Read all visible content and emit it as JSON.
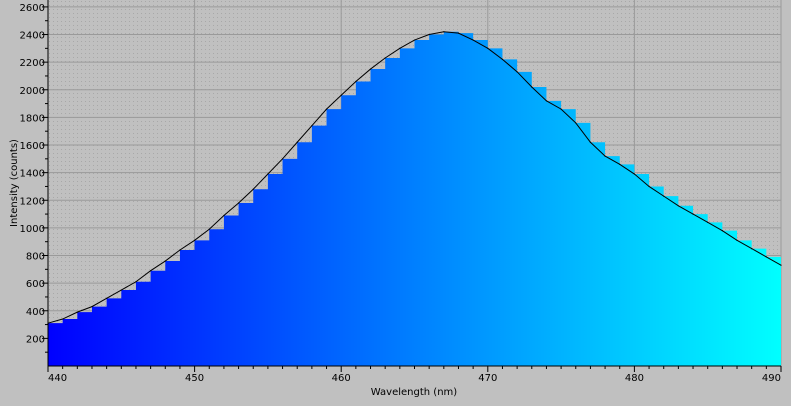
{
  "chart_data": {
    "type": "area",
    "xlabel": "Wavelength (nm)",
    "ylabel": "Intensity (counts)",
    "xlim": [
      440,
      490
    ],
    "ylim": [
      0,
      2650
    ],
    "x_ticks": [
      440,
      450,
      460,
      470,
      480,
      490
    ],
    "y_ticks": [
      200,
      400,
      600,
      800,
      1000,
      1200,
      1400,
      1600,
      1800,
      2000,
      2200,
      2400,
      2600
    ],
    "grid": true,
    "fill_gradient": [
      "#0000ff",
      "#00ffff"
    ],
    "line_color": "#000000",
    "series": [
      {
        "x": [
          440,
          441,
          442,
          443,
          444,
          445,
          446,
          447,
          448,
          449,
          450,
          451,
          452,
          453,
          454,
          455,
          456,
          457,
          458,
          459,
          460,
          461,
          462,
          463,
          464,
          465,
          466,
          467,
          468,
          469,
          470,
          471,
          472,
          473,
          474,
          475,
          476,
          477,
          478,
          479,
          480,
          481,
          482,
          483,
          484,
          485,
          486,
          487,
          488,
          489,
          490
        ],
        "y": [
          310,
          340,
          390,
          430,
          490,
          550,
          610,
          690,
          760,
          840,
          910,
          990,
          1090,
          1180,
          1280,
          1390,
          1500,
          1620,
          1740,
          1860,
          1960,
          2060,
          2150,
          2230,
          2300,
          2360,
          2400,
          2420,
          2410,
          2360,
          2300,
          2220,
          2130,
          2020,
          1920,
          1860,
          1760,
          1620,
          1520,
          1460,
          1390,
          1300,
          1230,
          1160,
          1100,
          1040,
          980,
          910,
          850,
          790,
          730
        ]
      }
    ]
  }
}
